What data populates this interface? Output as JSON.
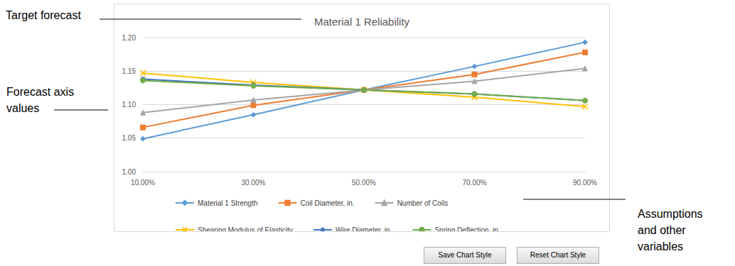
{
  "chart_data": {
    "type": "line",
    "title": "Material 1 Reliability",
    "categories": [
      "10.00%",
      "30.00%",
      "50.00%",
      "70.00%",
      "90.00%"
    ],
    "series": [
      {
        "name": "Material 1 Strength",
        "color": "#5b9bd5",
        "marker": "diamond",
        "values": [
          1.049,
          1.085,
          1.122,
          1.157,
          1.193
        ]
      },
      {
        "name": "Coil Diameter, in.",
        "color": "#ed7d31",
        "marker": "square",
        "values": [
          1.066,
          1.099,
          1.122,
          1.145,
          1.178
        ]
      },
      {
        "name": "Number of Coils",
        "color": "#a5a5a5",
        "marker": "triangle",
        "values": [
          1.088,
          1.107,
          1.122,
          1.135,
          1.154
        ]
      },
      {
        "name": "Shearing Modulus of Elasticity",
        "color": "#ffc000",
        "marker": "x",
        "values": [
          1.147,
          1.133,
          1.122,
          1.111,
          1.097
        ]
      },
      {
        "name": "Wire Diameter, in.",
        "color": "#4472c4",
        "marker": "asterisk",
        "values": [
          1.138,
          1.129,
          1.122,
          1.116,
          1.106
        ]
      },
      {
        "name": "Spring Deflection, in.",
        "color": "#70ad47",
        "marker": "circle",
        "values": [
          1.136,
          1.128,
          1.122,
          1.116,
          1.106
        ]
      }
    ],
    "ylim": [
      1.0,
      1.2
    ],
    "yticks": [
      {
        "value": 1.0,
        "label": "1.00"
      },
      1.05,
      {
        "value": 1.1,
        "label": "1.10"
      },
      1.15,
      {
        "value": 1.2,
        "label": "1.20"
      }
    ],
    "grid": true,
    "legend": "bottom",
    "annotations": [
      "Target forecast",
      "Forecast axis values",
      "Assumptions and other variables"
    ],
    "buttons": [
      "Save Chart Style",
      "Reset Chart Style"
    ]
  }
}
